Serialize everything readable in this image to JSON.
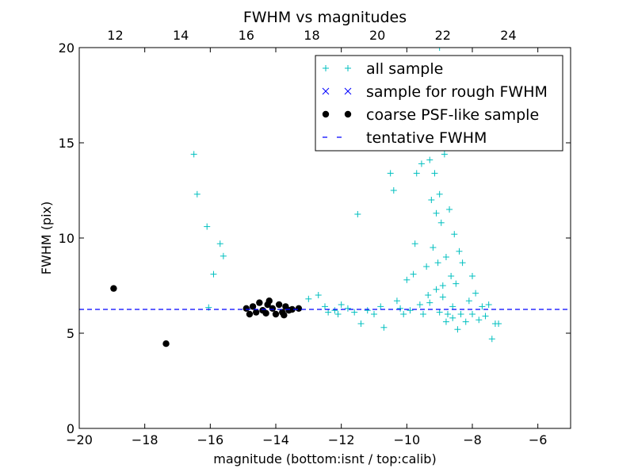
{
  "chart_data": {
    "type": "scatter",
    "title": "FWHM vs magnitudes",
    "xlabel": "magnitude (bottom:isnt / top:calib)",
    "ylabel": "FWHM (pix)",
    "xlim": [
      -20,
      -5
    ],
    "ylim": [
      0,
      20
    ],
    "x_ticks": [
      -20,
      -18,
      -16,
      -14,
      -12,
      -10,
      -8,
      -6
    ],
    "x_tick_labels": [
      "−20",
      "−18",
      "−16",
      "−14",
      "−12",
      "−10",
      "−8",
      "−6"
    ],
    "y_ticks": [
      0,
      5,
      10,
      15,
      20
    ],
    "y_tick_labels": [
      "0",
      "5",
      "10",
      "15",
      "20"
    ],
    "top_axis": {
      "xlim": [
        10.9,
        25.9
      ],
      "ticks": [
        12,
        14,
        16,
        18,
        20,
        22,
        24
      ],
      "tick_labels": [
        "12",
        "14",
        "16",
        "18",
        "20",
        "22",
        "24"
      ]
    },
    "legend": {
      "position": "top-right",
      "entries": [
        {
          "label": "all sample",
          "marker": "plus",
          "color": "#00bfbf"
        },
        {
          "label": "sample for rough FWHM",
          "marker": "x",
          "color": "#0000ff"
        },
        {
          "label": "coarse PSF-like sample",
          "marker": "circle",
          "color": "#000000"
        },
        {
          "label": "tentative FWHM",
          "marker": "dashed-line",
          "color": "#0000ff"
        }
      ]
    },
    "series": [
      {
        "name": "all sample",
        "marker": "plus",
        "color": "#00bfbf",
        "points": [
          [
            -16.5,
            14.4
          ],
          [
            -16.4,
            12.3
          ],
          [
            -16.1,
            10.6
          ],
          [
            -15.7,
            9.7
          ],
          [
            -15.6,
            9.05
          ],
          [
            -15.9,
            8.1
          ],
          [
            -16.05,
            6.35
          ],
          [
            -13.0,
            6.8
          ],
          [
            -12.7,
            7.0
          ],
          [
            -12.5,
            6.4
          ],
          [
            -12.4,
            6.1
          ],
          [
            -12.2,
            6.2
          ],
          [
            -12.1,
            6.0
          ],
          [
            -12.0,
            6.5
          ],
          [
            -11.8,
            6.3
          ],
          [
            -11.6,
            6.1
          ],
          [
            -11.5,
            11.25
          ],
          [
            -11.4,
            5.5
          ],
          [
            -11.2,
            6.2
          ],
          [
            -11.0,
            6.0
          ],
          [
            -10.8,
            6.4
          ],
          [
            -10.7,
            5.3
          ],
          [
            -10.5,
            13.4
          ],
          [
            -10.4,
            12.5
          ],
          [
            -10.3,
            6.7
          ],
          [
            -10.2,
            6.3
          ],
          [
            -10.1,
            6.0
          ],
          [
            -10.0,
            7.8
          ],
          [
            -9.9,
            6.2
          ],
          [
            -9.8,
            8.1
          ],
          [
            -9.75,
            9.7
          ],
          [
            -9.7,
            13.4
          ],
          [
            -9.6,
            6.5
          ],
          [
            -9.55,
            13.9
          ],
          [
            -9.5,
            6.0
          ],
          [
            -9.4,
            8.5
          ],
          [
            -9.35,
            7.0
          ],
          [
            -9.3,
            14.1
          ],
          [
            -9.25,
            12.0
          ],
          [
            -9.2,
            9.5
          ],
          [
            -9.15,
            13.4
          ],
          [
            -9.1,
            11.3
          ],
          [
            -9.05,
            8.7
          ],
          [
            -9.0,
            6.1
          ],
          [
            -9.0,
            12.3
          ],
          [
            -8.95,
            10.8
          ],
          [
            -8.9,
            7.5
          ],
          [
            -8.85,
            14.4
          ],
          [
            -8.8,
            9.0
          ],
          [
            -8.75,
            6.0
          ],
          [
            -8.7,
            11.5
          ],
          [
            -8.65,
            8.0
          ],
          [
            -8.6,
            6.4
          ],
          [
            -8.55,
            10.2
          ],
          [
            -8.5,
            7.6
          ],
          [
            -8.45,
            5.2
          ],
          [
            -8.4,
            9.3
          ],
          [
            -8.35,
            6.0
          ],
          [
            -8.3,
            8.7
          ],
          [
            -8.2,
            5.6
          ],
          [
            -8.1,
            6.7
          ],
          [
            -8.0,
            8.0
          ],
          [
            -8.0,
            6.0
          ],
          [
            -7.9,
            7.1
          ],
          [
            -7.8,
            5.7
          ],
          [
            -7.7,
            6.4
          ],
          [
            -7.6,
            5.9
          ],
          [
            -7.5,
            6.5
          ],
          [
            -7.4,
            4.7
          ],
          [
            -7.3,
            5.5
          ],
          [
            -7.2,
            5.5
          ],
          [
            -9.0,
            20.0
          ],
          [
            -9.1,
            7.3
          ],
          [
            -9.3,
            6.6
          ],
          [
            -8.9,
            6.9
          ],
          [
            -8.8,
            5.6
          ],
          [
            -8.6,
            5.8
          ]
        ]
      },
      {
        "name": "coarse PSF-like sample",
        "marker": "circle",
        "color": "#000000",
        "points": [
          [
            -18.95,
            7.35
          ],
          [
            -17.35,
            4.45
          ],
          [
            -14.9,
            6.3
          ],
          [
            -14.8,
            6.0
          ],
          [
            -14.7,
            6.4
          ],
          [
            -14.6,
            6.1
          ],
          [
            -14.5,
            6.6
          ],
          [
            -14.4,
            6.2
          ],
          [
            -14.3,
            6.05
          ],
          [
            -14.2,
            6.7
          ],
          [
            -14.1,
            6.3
          ],
          [
            -14.0,
            6.0
          ],
          [
            -13.9,
            6.5
          ],
          [
            -13.8,
            6.1
          ],
          [
            -13.7,
            6.4
          ],
          [
            -13.6,
            6.2
          ],
          [
            -13.5,
            6.25
          ],
          [
            -13.3,
            6.3
          ],
          [
            -14.25,
            6.5
          ],
          [
            -13.75,
            5.95
          ]
        ]
      },
      {
        "name": "tentative FWHM",
        "marker": "dashed-line",
        "color": "#0000ff",
        "value": 6.25
      }
    ]
  }
}
